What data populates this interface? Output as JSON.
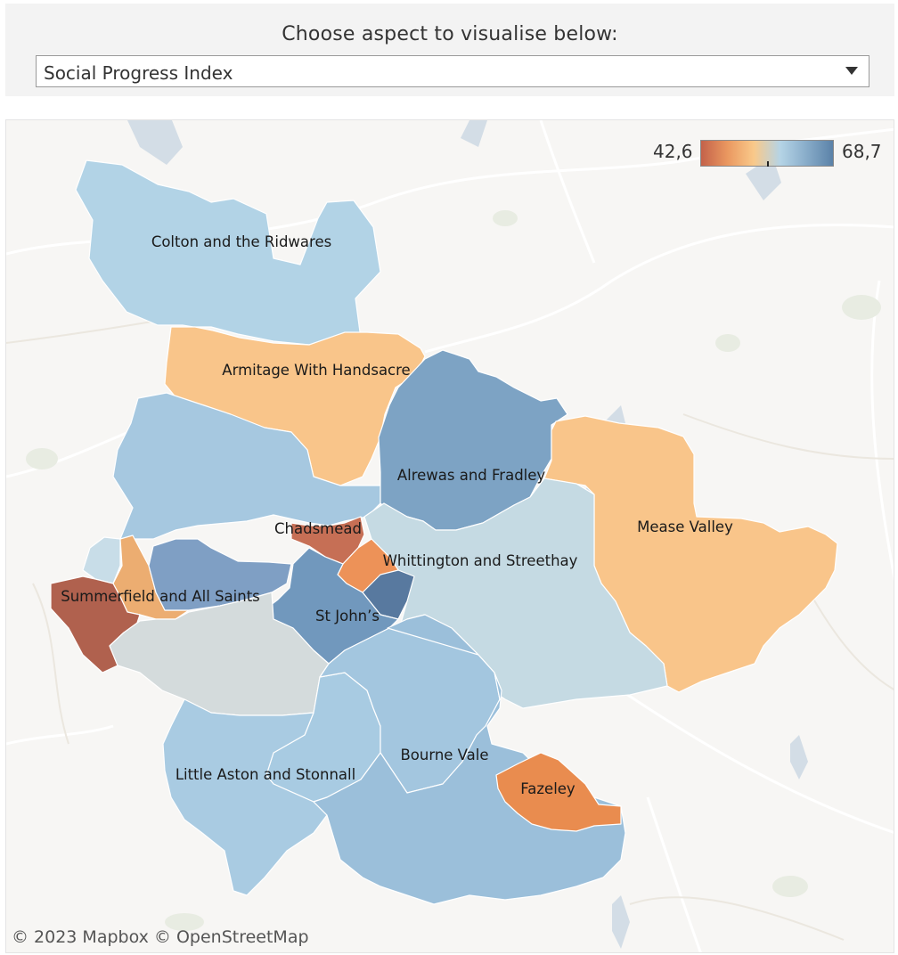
{
  "control": {
    "title": "Choose aspect to visualise below:",
    "selected": "Social Progress Index"
  },
  "legend": {
    "min_label": "42,6",
    "max_label": "68,7",
    "min_value": 42.6,
    "max_value": 68.7,
    "colors": [
      "#c4624a",
      "#ea9860",
      "#f9c98a",
      "#b5d4e6",
      "#88acc9",
      "#5b82a8"
    ]
  },
  "map": {
    "attribution": "© 2023 Mapbox  © OpenStreetMap",
    "regions": [
      {
        "id": "colton",
        "label": "Colton and the Ridwares",
        "color": "#b2d3e6"
      },
      {
        "id": "armitage",
        "label": "Armitage With Handsacre",
        "color": "#f9c58a"
      },
      {
        "id": "alrewas",
        "label": "Alrewas and Fradley",
        "color": "#7da3c4"
      },
      {
        "id": "mease",
        "label": "Mease Valley",
        "color": "#f9c58a"
      },
      {
        "id": "chadsmead",
        "label": "Chadsmead",
        "color": "#c66f55"
      },
      {
        "id": "whittington",
        "label": "Whittington and Streethay",
        "color": "#c5dae3"
      },
      {
        "id": "summerfield",
        "label": "Summerfield and All Saints",
        "color": "#b0614e"
      },
      {
        "id": "stjohns",
        "label": "St John’s",
        "color": "#7198bd"
      },
      {
        "id": "bourne",
        "label": "Bourne Vale",
        "color": "#9bbfda"
      },
      {
        "id": "littleaston",
        "label": "Little Aston and Stonnall",
        "color": "#a9cbe2"
      },
      {
        "id": "fazeley",
        "label": "Fazeley",
        "color": "#e98c4f"
      }
    ],
    "unlabeled_wards": [
      {
        "id": "west-ward",
        "color": "#a6c8e0"
      },
      {
        "id": "boney-hay",
        "color": "#ecad71"
      },
      {
        "id": "leomansley",
        "color": "#7f9fc4"
      },
      {
        "id": "curborough",
        "color": "#ed9258"
      },
      {
        "id": "stowe",
        "color": "#58799f"
      },
      {
        "id": "south-grey",
        "color": "#d4dbdc"
      },
      {
        "id": "far-west",
        "color": "#c8dde8"
      },
      {
        "id": "shenstone",
        "color": "#a8cbe2"
      },
      {
        "id": "hammerwich",
        "color": "#a3c6df"
      }
    ]
  }
}
